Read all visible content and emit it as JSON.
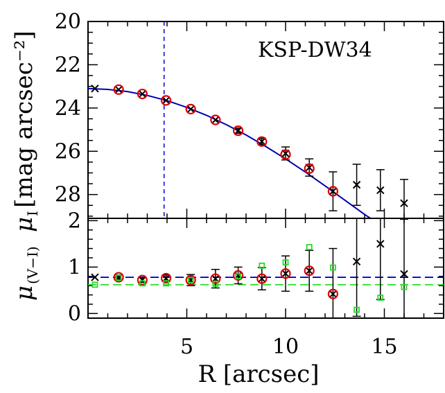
{
  "chart_data": [
    {
      "type": "scatter",
      "panel": "upper",
      "title": "KSP-DW34",
      "ylabel_symbol": "μ",
      "ylabel_sub": "I",
      "ylabel_units": "[mag arcsec⁻²]",
      "xlim": [
        0,
        18
      ],
      "ylim": [
        29.1,
        20
      ],
      "y_inverted": true,
      "yticks": [
        20,
        22,
        24,
        26,
        28
      ],
      "vline_x": 3.85,
      "series": [
        {
          "marker": "x",
          "color": "#000000",
          "points": [
            {
              "x": 0.35,
              "y": 23.1,
              "err": 0
            },
            {
              "x": 1.55,
              "y": 23.15,
              "err": 0
            },
            {
              "x": 2.75,
              "y": 23.35,
              "err": 0
            },
            {
              "x": 3.95,
              "y": 23.65,
              "err": 0
            },
            {
              "x": 5.2,
              "y": 24.05,
              "err": 0
            },
            {
              "x": 6.45,
              "y": 24.55,
              "err": 0
            },
            {
              "x": 7.6,
              "y": 25.05,
              "err": 0.12
            },
            {
              "x": 8.8,
              "y": 25.55,
              "err": 0.15
            },
            {
              "x": 10.0,
              "y": 26.1,
              "err": 0.3
            },
            {
              "x": 11.2,
              "y": 26.75,
              "err": 0.4
            },
            {
              "x": 12.4,
              "y": 27.85,
              "err": 0.9
            },
            {
              "x": 13.6,
              "y": 27.55,
              "err": 0.95
            },
            {
              "x": 14.8,
              "y": 27.8,
              "err": 0.95
            },
            {
              "x": 16.0,
              "y": 28.4,
              "err": 1.1
            }
          ]
        },
        {
          "marker": "circle",
          "color": "#dd0000",
          "points": [
            {
              "x": 1.55,
              "y": 23.15
            },
            {
              "x": 2.75,
              "y": 23.35
            },
            {
              "x": 3.95,
              "y": 23.65
            },
            {
              "x": 5.2,
              "y": 24.05
            },
            {
              "x": 6.45,
              "y": 24.55
            },
            {
              "x": 7.6,
              "y": 25.05
            },
            {
              "x": 8.8,
              "y": 25.55
            },
            {
              "x": 10.0,
              "y": 26.15
            },
            {
              "x": 11.2,
              "y": 26.8
            },
            {
              "x": 12.4,
              "y": 27.85
            }
          ]
        }
      ],
      "fit_curve": {
        "color": "#0000aa",
        "points": [
          {
            "x": 0.0,
            "y": 23.1
          },
          {
            "x": 1.0,
            "y": 23.14
          },
          {
            "x": 2.0,
            "y": 23.24
          },
          {
            "x": 3.0,
            "y": 23.42
          },
          {
            "x": 4.0,
            "y": 23.66
          },
          {
            "x": 5.0,
            "y": 23.97
          },
          {
            "x": 6.0,
            "y": 24.34
          },
          {
            "x": 7.0,
            "y": 24.77
          },
          {
            "x": 8.0,
            "y": 25.25
          },
          {
            "x": 9.0,
            "y": 25.78
          },
          {
            "x": 10.0,
            "y": 26.35
          },
          {
            "x": 11.0,
            "y": 26.96
          },
          {
            "x": 12.0,
            "y": 27.6
          },
          {
            "x": 13.0,
            "y": 28.26
          },
          {
            "x": 14.0,
            "y": 28.92
          },
          {
            "x": 14.3,
            "y": 29.1
          }
        ]
      }
    },
    {
      "type": "scatter",
      "panel": "lower",
      "xlabel": "R [arcsec]",
      "ylabel_symbol": "μ",
      "ylabel_sub": "(V−I)",
      "xlim": [
        0,
        18
      ],
      "ylim": [
        -0.1,
        2.05
      ],
      "xticks": [
        5,
        10,
        15
      ],
      "yticks": [
        0,
        1,
        2
      ],
      "hlines": [
        {
          "y": 0.78,
          "color": "#0000cc",
          "style": "dashed"
        },
        {
          "y": 0.62,
          "color": "#22dd22",
          "style": "dashed"
        }
      ],
      "series": [
        {
          "marker": "x",
          "color": "#000000",
          "points": [
            {
              "x": 0.35,
              "y": 0.78,
              "err": 0
            },
            {
              "x": 1.55,
              "y": 0.78,
              "err": 0.05
            },
            {
              "x": 2.75,
              "y": 0.72,
              "err": 0.05
            },
            {
              "x": 3.95,
              "y": 0.76,
              "err": 0.07
            },
            {
              "x": 5.2,
              "y": 0.72,
              "err": 0.12
            },
            {
              "x": 6.45,
              "y": 0.75,
              "err": 0.2
            },
            {
              "x": 7.6,
              "y": 0.82,
              "err": 0.18
            },
            {
              "x": 8.8,
              "y": 0.75,
              "err": 0.24
            },
            {
              "x": 10.0,
              "y": 0.86,
              "err": 0.38
            },
            {
              "x": 11.2,
              "y": 0.92,
              "err": 0.44
            },
            {
              "x": 12.4,
              "y": 0.42,
              "err": 0.98
            },
            {
              "x": 13.6,
              "y": 1.12,
              "err": 1.18
            },
            {
              "x": 14.8,
              "y": 1.5,
              "err": 1.2
            },
            {
              "x": 16.0,
              "y": 0.85,
              "err": 1.18
            }
          ]
        },
        {
          "marker": "circle",
          "color": "#dd0000",
          "points": [
            {
              "x": 1.55,
              "y": 0.78
            },
            {
              "x": 2.75,
              "y": 0.72
            },
            {
              "x": 3.95,
              "y": 0.76
            },
            {
              "x": 5.2,
              "y": 0.72
            },
            {
              "x": 6.45,
              "y": 0.75
            },
            {
              "x": 7.6,
              "y": 0.82
            },
            {
              "x": 8.8,
              "y": 0.75
            },
            {
              "x": 10.0,
              "y": 0.86
            },
            {
              "x": 11.2,
              "y": 0.92
            },
            {
              "x": 12.4,
              "y": 0.42
            }
          ]
        },
        {
          "marker": "square",
          "color": "#22dd22",
          "points": [
            {
              "x": 0.35,
              "y": 0.62
            },
            {
              "x": 1.55,
              "y": 0.77
            },
            {
              "x": 2.75,
              "y": 0.65
            },
            {
              "x": 3.95,
              "y": 0.65
            },
            {
              "x": 5.2,
              "y": 0.72
            },
            {
              "x": 6.45,
              "y": 0.64
            },
            {
              "x": 7.6,
              "y": 0.8
            },
            {
              "x": 8.8,
              "y": 1.03
            },
            {
              "x": 10.0,
              "y": 1.1
            },
            {
              "x": 11.2,
              "y": 1.43
            },
            {
              "x": 12.4,
              "y": 0.99
            },
            {
              "x": 13.6,
              "y": 0.08
            },
            {
              "x": 14.8,
              "y": 0.34
            },
            {
              "x": 16.0,
              "y": 0.57
            }
          ]
        }
      ]
    }
  ]
}
